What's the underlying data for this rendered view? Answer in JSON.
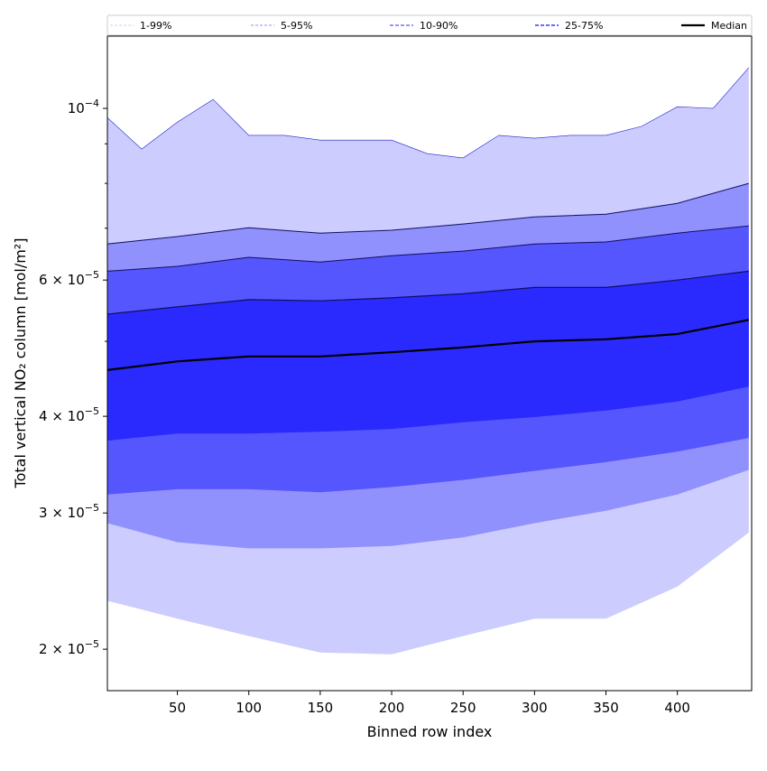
{
  "chart_data": {
    "type": "area",
    "title": "",
    "xlabel": "Binned row index",
    "ylabel": "Total vertical NO₂ column [mol/m²]",
    "yscale": "log",
    "xlim": [
      1,
      452
    ],
    "ylim": [
      1.768e-05,
      0.000124
    ],
    "x_ticks": [
      50,
      100,
      150,
      200,
      250,
      300,
      350,
      400
    ],
    "y_ticks": [
      {
        "value": 2e-05,
        "label": "2 × 10",
        "exp": "−5"
      },
      {
        "value": 3e-05,
        "label": "3 × 10",
        "exp": "−5"
      },
      {
        "value": 4e-05,
        "label": "4 × 10",
        "exp": "−5"
      },
      {
        "value": 6e-05,
        "label": "6 × 10",
        "exp": "−5"
      },
      {
        "value": 0.0001,
        "label": "10",
        "exp": "−4"
      }
    ],
    "y_minor_ticks": [
      5e-05,
      7e-05,
      8e-05,
      9e-05
    ],
    "legend_position": "top (above plot, expanded)",
    "legend": [
      {
        "label": "1-99%",
        "color": "#ccccfe"
      },
      {
        "label": "5-95%",
        "color": "#9191fe"
      },
      {
        "label": "10-90%",
        "color": "#5656fe"
      },
      {
        "label": "25-75%",
        "color": "#2a2afe"
      },
      {
        "label": "Median",
        "color": "#000000"
      }
    ],
    "x": [
      1,
      50,
      100,
      150,
      200,
      250,
      300,
      350,
      400,
      450
    ],
    "series": [
      {
        "name": "p99",
        "x": [
          1,
          25,
          50,
          75,
          100,
          125,
          150,
          175,
          200,
          225,
          250,
          275,
          300,
          325,
          350,
          375,
          400,
          425,
          450
        ],
        "values": [
          9.73e-05,
          8.86e-05,
          9.6e-05,
          0.0001027,
          9.23e-05,
          9.23e-05,
          9.1e-05,
          9.1e-05,
          9.1e-05,
          8.74e-05,
          8.63e-05,
          9.23e-05,
          9.15e-05,
          9.23e-05,
          9.23e-05,
          9.48e-05,
          0.0001005,
          0.0001,
          0.0001129
        ]
      },
      {
        "name": "p95",
        "values": [
          6.68e-05,
          6.83e-05,
          7.01e-05,
          6.9e-05,
          6.96e-05,
          7.09e-05,
          7.24e-05,
          7.3e-05,
          7.54e-05,
          8e-05
        ]
      },
      {
        "name": "p90",
        "values": [
          6.16e-05,
          6.25e-05,
          6.42e-05,
          6.33e-05,
          6.45e-05,
          6.54e-05,
          6.68e-05,
          6.72e-05,
          6.9e-05,
          7.05e-05
        ]
      },
      {
        "name": "p75",
        "values": [
          5.42e-05,
          5.54e-05,
          5.66e-05,
          5.64e-05,
          5.69e-05,
          5.76e-05,
          5.87e-05,
          5.87e-05,
          6e-05,
          6.16e-05
        ]
      },
      {
        "name": "Median",
        "values": [
          4.59e-05,
          4.71e-05,
          4.78e-05,
          4.78e-05,
          4.84e-05,
          4.91e-05,
          5e-05,
          5.03e-05,
          5.11e-05,
          5.33e-05
        ]
      },
      {
        "name": "p25",
        "values": [
          3.72e-05,
          3.8e-05,
          3.8e-05,
          3.82e-05,
          3.85e-05,
          3.93e-05,
          3.99e-05,
          4.07e-05,
          4.18e-05,
          4.37e-05
        ]
      },
      {
        "name": "p10",
        "values": [
          3.17e-05,
          3.22e-05,
          3.22e-05,
          3.19e-05,
          3.24e-05,
          3.31e-05,
          3.4e-05,
          3.49e-05,
          3.6e-05,
          3.75e-05
        ]
      },
      {
        "name": "p5",
        "values": [
          2.91e-05,
          2.75e-05,
          2.7e-05,
          2.7e-05,
          2.72e-05,
          2.79e-05,
          2.91e-05,
          3.02e-05,
          3.17e-05,
          3.41e-05
        ]
      },
      {
        "name": "p1",
        "values": [
          2.31e-05,
          2.19e-05,
          2.08e-05,
          1.98e-05,
          1.97e-05,
          2.08e-05,
          2.19e-05,
          2.19e-05,
          2.41e-05,
          2.83e-05
        ]
      }
    ]
  }
}
